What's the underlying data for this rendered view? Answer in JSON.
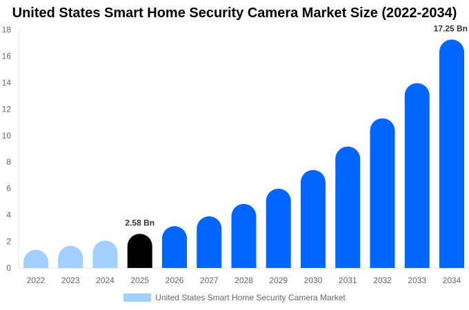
{
  "chart_data": {
    "type": "bar",
    "title": "United States Smart Home Security Camera Market Size (2022-2034)",
    "categories": [
      "2022",
      "2023",
      "2024",
      "2025",
      "2026",
      "2027",
      "2028",
      "2029",
      "2030",
      "2031",
      "2032",
      "2033",
      "2034"
    ],
    "series": [
      {
        "name": "United States Smart Home Security Camera Market",
        "values": [
          1.37,
          1.67,
          2.07,
          2.58,
          3.16,
          3.9,
          4.84,
          5.99,
          7.4,
          9.17,
          11.3,
          13.96,
          17.25
        ]
      }
    ],
    "data_labels": {
      "3": "2.58 Bn",
      "12": "17.25 Bn"
    },
    "ylim": [
      0,
      18
    ],
    "yticks": [
      0,
      2,
      4,
      6,
      8,
      10,
      12,
      14,
      16,
      18
    ],
    "grid": false,
    "legend_position": "bottom",
    "colors": {
      "historical": "#a3cfff",
      "current": "#000000",
      "forecast": "#0066ff"
    }
  }
}
